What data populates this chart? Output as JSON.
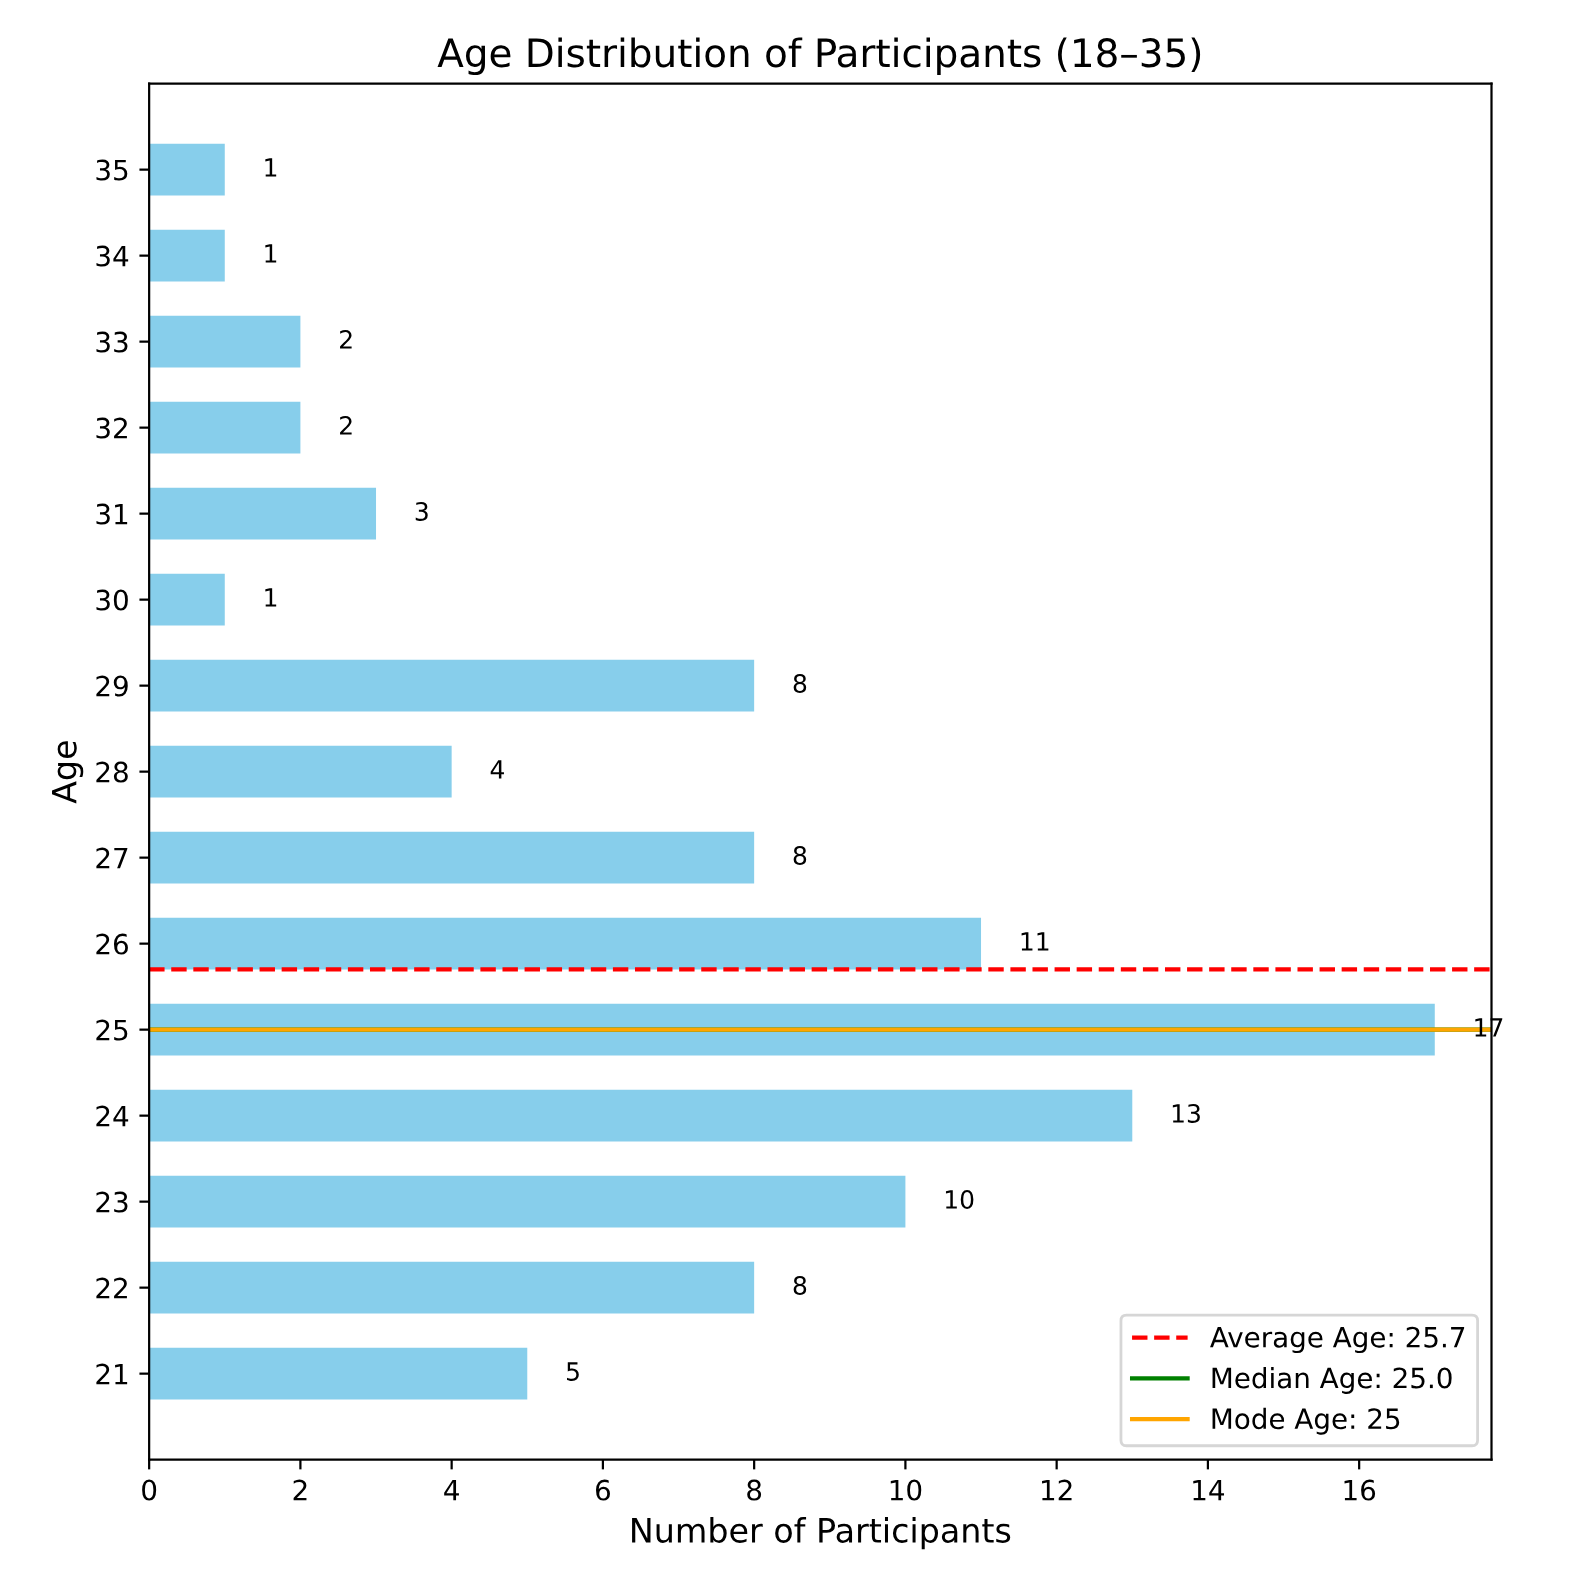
{
  "chart_data": {
    "type": "bar",
    "orientation": "horizontal",
    "title": "Age Distribution of Participants (18–35)",
    "xlabel": "Number of Participants",
    "ylabel": "Age",
    "x": [
      35,
      34,
      33,
      32,
      31,
      30,
      29,
      28,
      27,
      26,
      25,
      24,
      23,
      22,
      21
    ],
    "values": [
      1,
      1,
      2,
      2,
      3,
      1,
      8,
      4,
      8,
      11,
      17,
      13,
      10,
      8,
      5
    ],
    "color": "#87ceeb",
    "data_labels": true,
    "xlim": [
      0,
      17.75
    ],
    "xticks": [
      0,
      2,
      4,
      6,
      8,
      10,
      12,
      14,
      16
    ],
    "ylim": [
      20,
      36
    ],
    "yticks": [
      21,
      22,
      23,
      24,
      25,
      26,
      27,
      28,
      29,
      30,
      31,
      32,
      33,
      34,
      35
    ],
    "ref_lines": [
      {
        "axis": "y",
        "value": 25.7,
        "label": "Average Age: 25.7",
        "color": "#ff0000",
        "line_style": "dashed"
      },
      {
        "axis": "y",
        "value": 25,
        "label": "Median Age: 25.0",
        "color": "#008000",
        "line_style": "solid"
      },
      {
        "axis": "y",
        "value": 25,
        "label": "Mode Age: 25",
        "color": "#ffa500",
        "line_style": "solid"
      }
    ],
    "legend": "bottom right",
    "grid": false
  }
}
